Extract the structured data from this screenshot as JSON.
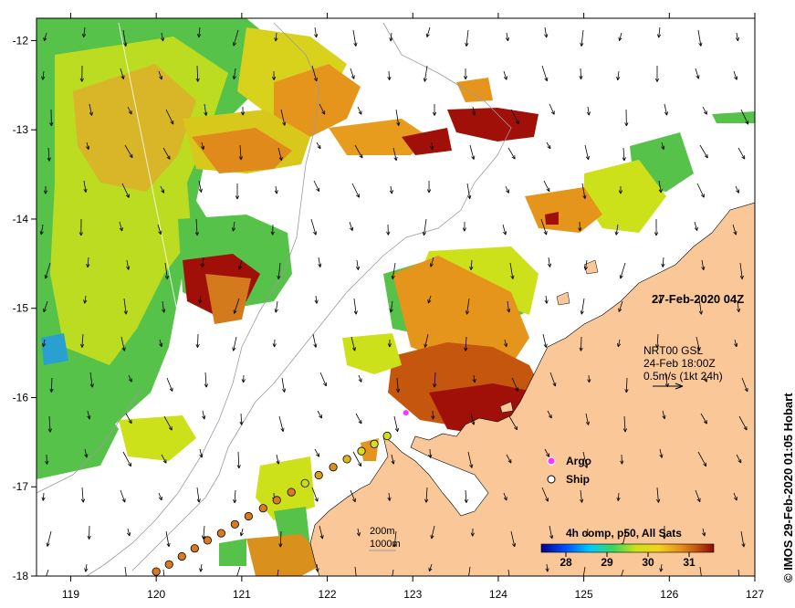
{
  "map": {
    "x_ticks": [
      "119",
      "120",
      "121",
      "122",
      "123",
      "124",
      "125",
      "126",
      "127"
    ],
    "y_ticks": [
      "-12",
      "-13",
      "-14",
      "-15",
      "-16",
      "-17",
      "-18"
    ],
    "x_range": [
      118.6,
      127.0
    ],
    "y_range": [
      -11.75,
      -18.0
    ],
    "timestamp": "27-Feb-2020 04Z",
    "current_info": {
      "line1": "NRT00 GSL",
      "line2": "24-Feb 18:00Z",
      "line3": "0.5m/s (1kt 24h)"
    },
    "legend": {
      "argo": "Argo",
      "ship": "Ship"
    },
    "depth_labels": {
      "d200": "200m",
      "d1000": "1000m"
    },
    "colorbar": {
      "title": "4h comp, p50, All Sats",
      "ticks": [
        "28",
        "29",
        "30",
        "31"
      ],
      "tick_values": [
        28,
        29,
        30,
        31
      ],
      "range": [
        27.4,
        31.6
      ]
    },
    "credit": "© IMOS 29-Feb-2020 01:05 Hobart",
    "colors": {
      "land": "#fac898",
      "green": "#57c24a",
      "yellow": "#cde11a",
      "orange": "#e6951c",
      "brown": "#c4560e",
      "darkred": "#a01008",
      "ship_fill": "#d97a1d",
      "argo": "#ff33ff"
    },
    "ship_track": [
      [
        120.0,
        -17.95
      ],
      [
        120.15,
        -17.87
      ],
      [
        120.3,
        -17.78
      ],
      [
        120.45,
        -17.69
      ],
      [
        120.6,
        -17.6
      ],
      [
        120.76,
        -17.52
      ],
      [
        120.92,
        -17.42
      ],
      [
        121.08,
        -17.33
      ],
      [
        121.25,
        -17.24
      ],
      [
        121.41,
        -17.15
      ],
      [
        121.58,
        -17.06
      ],
      [
        121.74,
        -16.96
      ],
      [
        121.9,
        -16.87
      ],
      [
        122.07,
        -16.78
      ],
      [
        122.23,
        -16.69
      ],
      [
        122.4,
        -16.6
      ],
      [
        122.55,
        -16.52
      ],
      [
        122.7,
        -16.43
      ]
    ],
    "argo_floats": [
      [
        122.92,
        -16.17
      ],
      [
        124.62,
        -16.72
      ]
    ]
  }
}
